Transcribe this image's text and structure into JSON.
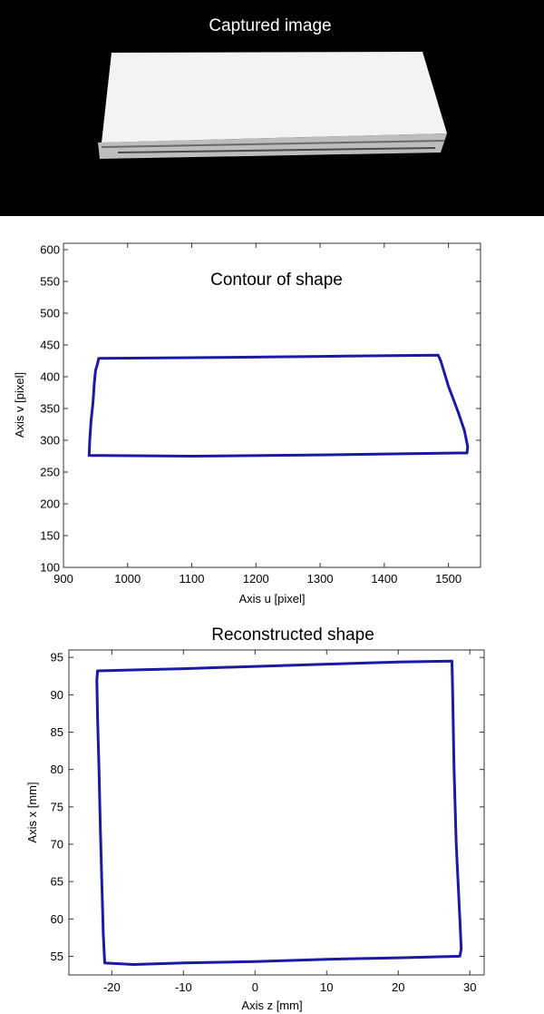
{
  "photo": {
    "title": "Captured image",
    "background_color": "#000000",
    "object_color": "#f4f4f4"
  },
  "chart_data": [
    {
      "type": "line",
      "title": "Contour of shape",
      "xlabel": "Axis u [pixel]",
      "ylabel": "Axis v [pixel]",
      "xlim": [
        900,
        1550
      ],
      "ylim": [
        100,
        610
      ],
      "xticks": [
        900,
        1000,
        1100,
        1200,
        1300,
        1400,
        1500
      ],
      "yticks": [
        100,
        150,
        200,
        250,
        300,
        350,
        400,
        450,
        500,
        550,
        600
      ],
      "grid": false,
      "line_color": "#1a1aa6",
      "series": [
        {
          "x": [
            955,
            1100,
            1300,
            1484,
            1488,
            1500,
            1515,
            1525,
            1530,
            1529,
            1515,
            1300,
            1100,
            960,
            940,
            941,
            943,
            946,
            948,
            950,
            953,
            955
          ],
          "y": [
            429,
            430,
            432,
            434,
            425,
            385,
            345,
            315,
            290,
            280,
            280,
            277,
            275,
            276,
            276,
            300,
            330,
            360,
            390,
            410,
            420,
            429
          ]
        }
      ]
    },
    {
      "type": "line",
      "title": "Reconstructed  shape",
      "xlabel": "Axis z [mm]",
      "ylabel": "Axis x [mm]",
      "xlim": [
        -26,
        32
      ],
      "ylim": [
        52.5,
        96
      ],
      "xticks": [
        -20,
        -10,
        0,
        10,
        20,
        30
      ],
      "yticks": [
        55,
        60,
        65,
        70,
        75,
        80,
        85,
        90,
        95
      ],
      "grid": false,
      "line_color": "#1a1aa6",
      "series": [
        {
          "x": [
            -22,
            -10,
            0,
            10,
            20,
            27.5,
            27.6,
            27.8,
            28.1,
            28.6,
            28.8,
            28.6,
            20,
            10,
            0,
            -10,
            -17,
            -21,
            -21.2,
            -21.4,
            -21.6,
            -21.8,
            -22,
            -22.1,
            -22
          ],
          "y": [
            93.2,
            93.5,
            93.8,
            94.1,
            94.4,
            94.5,
            90,
            80,
            70,
            60,
            56,
            55,
            54.8,
            54.6,
            54.3,
            54.1,
            53.9,
            54.1,
            58,
            65,
            72,
            80,
            87,
            92,
            93.2
          ]
        }
      ]
    }
  ]
}
